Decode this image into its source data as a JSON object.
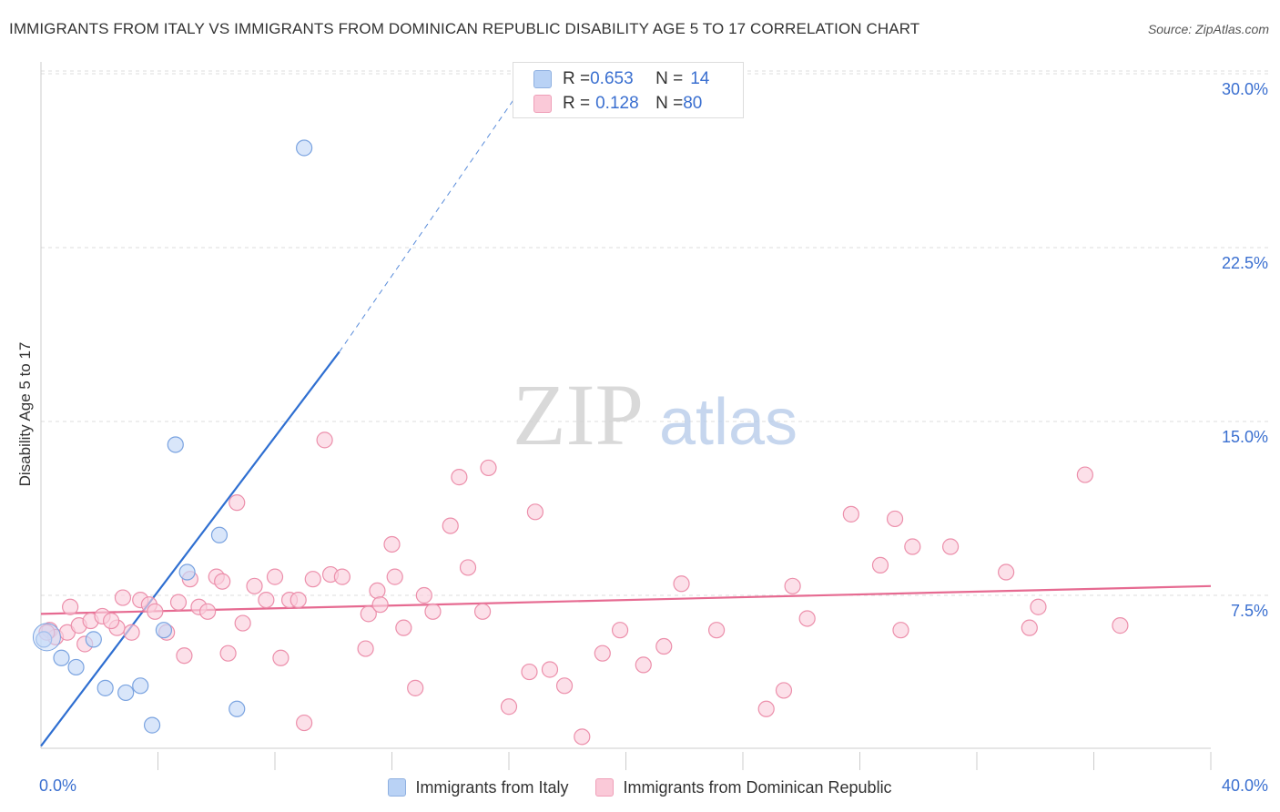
{
  "title": "IMMIGRANTS FROM ITALY VS IMMIGRANTS FROM DOMINICAN REPUBLIC DISABILITY AGE 5 TO 17 CORRELATION CHART",
  "source": "Source: ZipAtlas.com",
  "watermark": {
    "zip": "ZIP",
    "atlas": "atlas"
  },
  "stats": {
    "italy": {
      "r_label": "R = ",
      "r": "0.653",
      "n_label": "N = ",
      "n": "14",
      "color": "#b9d2f5"
    },
    "dominican": {
      "r_label": "R = ",
      "r": "0.128",
      "n_label": "N = ",
      "n": "80",
      "color": "#fac9d8"
    }
  },
  "chart_data": {
    "type": "scatter",
    "title": "IMMIGRANTS FROM ITALY VS IMMIGRANTS FROM DOMINICAN REPUBLIC DISABILITY AGE 5 TO 17 CORRELATION CHART",
    "xlabel": "",
    "ylabel": "Disability Age 5 to 17",
    "xlim": [
      0,
      40
    ],
    "ylim": [
      0,
      31
    ],
    "x_tick_labels": [
      "0.0%",
      "40.0%"
    ],
    "y_ticks": [
      7.5,
      15.0,
      22.5,
      30.0
    ],
    "y_tick_labels": [
      "7.5%",
      "15.0%",
      "22.5%",
      "30.0%"
    ],
    "grid": true,
    "legend_position": "bottom-center",
    "series": [
      {
        "name": "Immigrants from Italy",
        "color": "#7aa3e0",
        "fill": "#c5d9f7",
        "trend": {
          "x0": 0,
          "y0": 1.0,
          "x1": 10.2,
          "y1": 18.0,
          "dash_to_x": 16.5,
          "dash_to_y": 29.5,
          "color": "#2f6fd1"
        },
        "points": [
          [
            0.1,
            5.6
          ],
          [
            0.7,
            4.8
          ],
          [
            1.2,
            4.4
          ],
          [
            1.8,
            5.6
          ],
          [
            2.2,
            3.5
          ],
          [
            2.9,
            3.3
          ],
          [
            3.4,
            3.6
          ],
          [
            3.8,
            1.9
          ],
          [
            4.2,
            6.0
          ],
          [
            4.6,
            14.0
          ],
          [
            5.0,
            8.5
          ],
          [
            6.1,
            10.1
          ],
          [
            6.7,
            2.6
          ],
          [
            9.0,
            26.8
          ]
        ]
      },
      {
        "name": "Immigrants from Dominican Republic",
        "color": "#ec8fab",
        "fill": "#fbd0dd",
        "trend": {
          "x0": 0,
          "y0": 6.7,
          "x1": 40,
          "y1": 7.9,
          "color": "#e66a91"
        },
        "points": [
          [
            0.3,
            6.0
          ],
          [
            0.5,
            5.7
          ],
          [
            0.9,
            5.9
          ],
          [
            1.0,
            7.0
          ],
          [
            1.3,
            6.2
          ],
          [
            1.7,
            6.4
          ],
          [
            2.1,
            6.6
          ],
          [
            2.6,
            6.1
          ],
          [
            2.8,
            7.4
          ],
          [
            3.1,
            5.9
          ],
          [
            3.4,
            7.3
          ],
          [
            3.7,
            7.1
          ],
          [
            3.9,
            6.8
          ],
          [
            4.3,
            5.9
          ],
          [
            4.7,
            7.2
          ],
          [
            4.9,
            4.9
          ],
          [
            5.1,
            8.2
          ],
          [
            5.4,
            7.0
          ],
          [
            5.7,
            6.8
          ],
          [
            6.0,
            8.3
          ],
          [
            6.2,
            8.1
          ],
          [
            6.4,
            5.0
          ],
          [
            6.7,
            11.5
          ],
          [
            6.9,
            6.3
          ],
          [
            7.3,
            7.9
          ],
          [
            7.7,
            7.3
          ],
          [
            8.0,
            8.3
          ],
          [
            8.2,
            4.8
          ],
          [
            8.5,
            7.3
          ],
          [
            8.8,
            7.3
          ],
          [
            9.0,
            2.0
          ],
          [
            9.3,
            8.2
          ],
          [
            9.7,
            14.2
          ],
          [
            9.9,
            8.4
          ],
          [
            10.3,
            8.3
          ],
          [
            11.1,
            5.2
          ],
          [
            11.2,
            6.7
          ],
          [
            11.5,
            7.7
          ],
          [
            11.6,
            7.1
          ],
          [
            12.0,
            9.7
          ],
          [
            12.1,
            8.3
          ],
          [
            12.4,
            6.1
          ],
          [
            12.8,
            3.5
          ],
          [
            13.1,
            7.5
          ],
          [
            13.4,
            6.8
          ],
          [
            14.0,
            10.5
          ],
          [
            14.3,
            12.6
          ],
          [
            14.6,
            8.7
          ],
          [
            15.1,
            6.8
          ],
          [
            15.3,
            13.0
          ],
          [
            16.0,
            2.7
          ],
          [
            16.7,
            4.2
          ],
          [
            16.9,
            11.1
          ],
          [
            17.4,
            4.3
          ],
          [
            17.9,
            3.6
          ],
          [
            18.5,
            1.4
          ],
          [
            19.2,
            5.0
          ],
          [
            19.8,
            6.0
          ],
          [
            20.6,
            4.5
          ],
          [
            21.3,
            5.3
          ],
          [
            21.9,
            8.0
          ],
          [
            23.1,
            6.0
          ],
          [
            24.8,
            2.6
          ],
          [
            25.4,
            3.4
          ],
          [
            25.7,
            7.9
          ],
          [
            26.2,
            6.5
          ],
          [
            27.7,
            11.0
          ],
          [
            28.7,
            8.8
          ],
          [
            29.2,
            10.8
          ],
          [
            29.4,
            6.0
          ],
          [
            29.8,
            9.6
          ],
          [
            31.1,
            9.6
          ],
          [
            33.0,
            8.5
          ],
          [
            33.8,
            6.1
          ],
          [
            34.1,
            7.0
          ],
          [
            35.7,
            12.7
          ],
          [
            36.9,
            6.2
          ],
          [
            0.2,
            5.9
          ],
          [
            1.5,
            5.4
          ],
          [
            2.4,
            6.4
          ]
        ]
      }
    ]
  }
}
